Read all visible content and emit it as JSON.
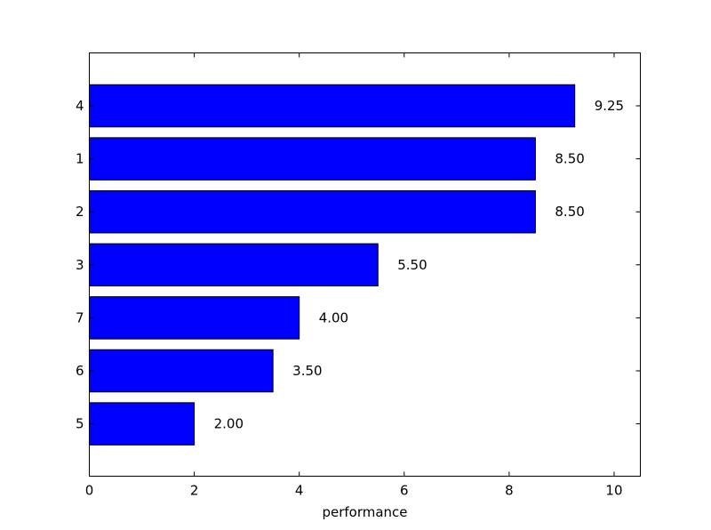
{
  "chart_data": {
    "type": "bar",
    "orientation": "horizontal",
    "categories": [
      "4",
      "1",
      "2",
      "3",
      "7",
      "6",
      "5"
    ],
    "values": [
      9.25,
      8.5,
      8.5,
      5.5,
      4.0,
      3.5,
      2.0
    ],
    "value_labels": [
      "9.25",
      "8.50",
      "8.50",
      "5.50",
      "4.00",
      "3.50",
      "2.00"
    ],
    "xlabel": "performance",
    "ylabel": "",
    "title": "",
    "xlim": [
      0,
      10.5
    ],
    "xticks": [
      0,
      2,
      4,
      6,
      8,
      10
    ],
    "xtick_labels": [
      "0",
      "2",
      "4",
      "6",
      "8",
      "10"
    ],
    "grid": false,
    "bar_color": "#0000ff",
    "edge_color": "#000000"
  }
}
